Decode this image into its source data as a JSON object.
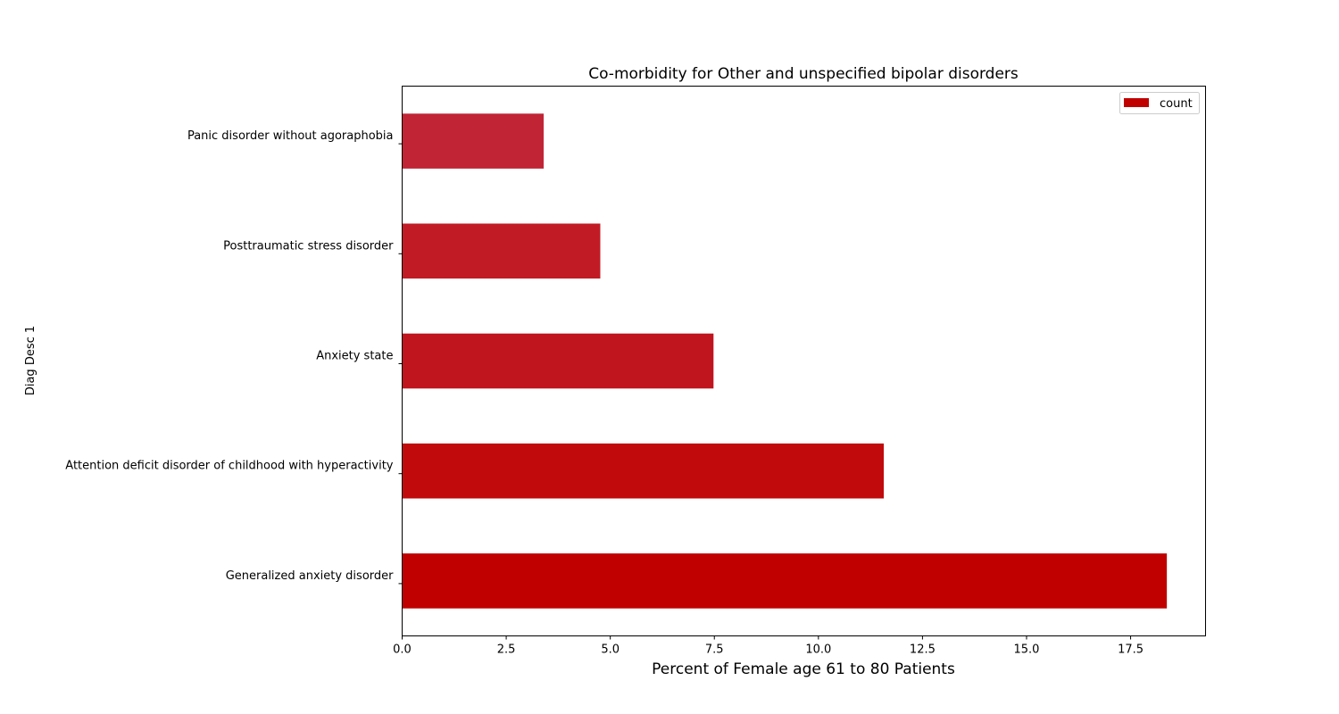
{
  "chart_data": {
    "type": "bar",
    "orientation": "horizontal",
    "title": "Co-morbidity for Other and unspecified bipolar disorders",
    "xlabel": "Percent of Female age 61 to 80 Patients",
    "ylabel": "Diag Desc 1",
    "categories": [
      "Generalized anxiety disorder",
      "Attention deficit disorder of childhood with hyperactivity",
      "Anxiety state",
      "Posttraumatic stress disorder",
      "Panic disorder without agoraphobia"
    ],
    "series": [
      {
        "name": "count",
        "values": [
          18.37,
          11.57,
          7.48,
          4.76,
          3.4
        ],
        "colors": [
          "#c00000",
          "#c10a0c",
          "#c0141e",
          "#c11b26",
          "#c12435"
        ]
      }
    ],
    "xlim": [
      0,
      19.3
    ],
    "xticks": [
      0.0,
      2.5,
      5.0,
      7.5,
      10.0,
      12.5,
      15.0,
      17.5
    ],
    "xtick_labels": [
      "0.0",
      "2.5",
      "5.0",
      "7.5",
      "10.0",
      "12.5",
      "15.0",
      "17.5"
    ],
    "grid": false,
    "legend_position": "top-right",
    "legend_color": "#c00000"
  }
}
